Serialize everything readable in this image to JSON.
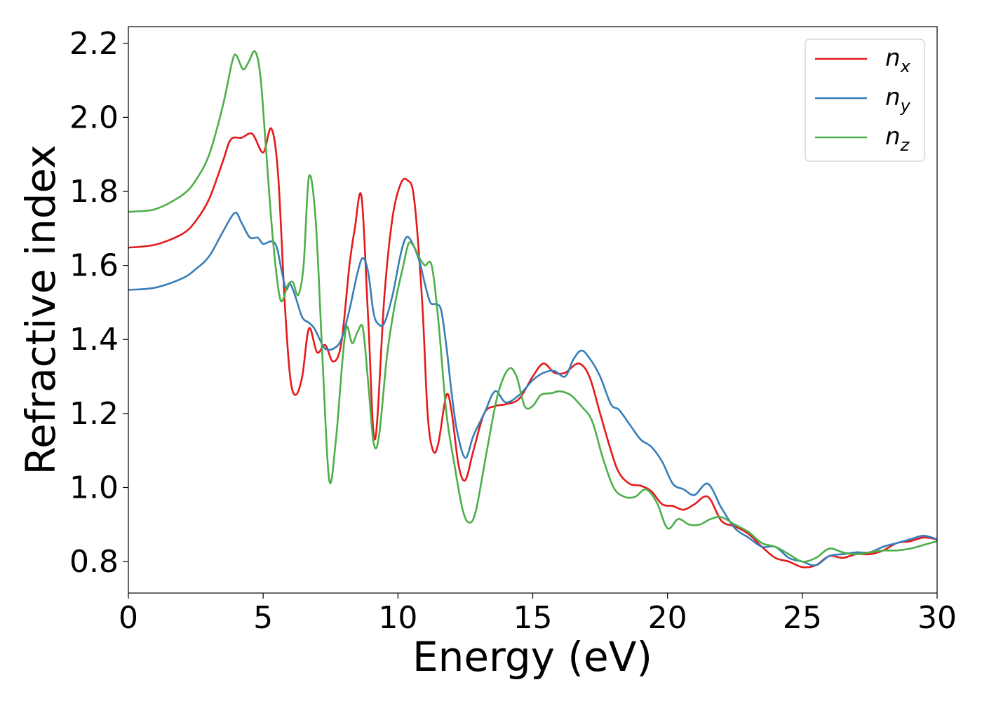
{
  "chart_data": {
    "type": "line",
    "xlabel": "Energy (eV)",
    "ylabel": "Refractive index",
    "xlim": [
      0,
      30
    ],
    "ylim": [
      0.715,
      2.245
    ],
    "xticks": [
      "0",
      "5",
      "10",
      "15",
      "20",
      "25",
      "30"
    ],
    "yticks": [
      "0.8",
      "1.0",
      "1.2",
      "1.4",
      "1.6",
      "1.8",
      "2.0",
      "2.2"
    ],
    "grid": false,
    "legend_position": "top-right",
    "series": [
      {
        "name": "n",
        "subscript": "x",
        "color": "#e41a1c",
        "x": [
          0,
          1,
          2,
          2.5,
          3,
          3.5,
          3.8,
          4.2,
          4.6,
          5.0,
          5.3,
          5.55,
          5.8,
          6.0,
          6.2,
          6.45,
          6.7,
          7.0,
          7.3,
          7.6,
          7.9,
          8.2,
          8.4,
          8.65,
          8.9,
          9.15,
          9.5,
          9.8,
          10.1,
          10.35,
          10.6,
          10.9,
          11.1,
          11.3,
          11.5,
          11.8,
          12.0,
          12.25,
          12.5,
          12.8,
          13.2,
          13.6,
          14.0,
          14.5,
          15.0,
          15.4,
          15.8,
          16.2,
          16.7,
          17.1,
          17.5,
          17.9,
          18.2,
          18.6,
          19.0,
          19.4,
          19.8,
          20.2,
          20.6,
          21.0,
          21.5,
          22.0,
          22.5,
          23.0,
          23.5,
          24.0,
          24.5,
          25.0,
          25.5,
          26.0,
          26.5,
          27.0,
          27.5,
          28.0,
          28.5,
          29.0,
          29.5,
          30.0
        ],
        "y": [
          1.648,
          1.656,
          1.685,
          1.72,
          1.78,
          1.88,
          1.94,
          1.945,
          1.955,
          1.905,
          1.97,
          1.85,
          1.5,
          1.3,
          1.25,
          1.3,
          1.43,
          1.365,
          1.385,
          1.34,
          1.39,
          1.6,
          1.7,
          1.785,
          1.45,
          1.13,
          1.52,
          1.73,
          1.82,
          1.83,
          1.78,
          1.5,
          1.2,
          1.1,
          1.12,
          1.25,
          1.2,
          1.06,
          1.02,
          1.1,
          1.2,
          1.22,
          1.225,
          1.24,
          1.3,
          1.335,
          1.31,
          1.31,
          1.335,
          1.3,
          1.2,
          1.1,
          1.04,
          1.01,
          1.005,
          0.99,
          0.955,
          0.95,
          0.94,
          0.955,
          0.975,
          0.91,
          0.895,
          0.875,
          0.84,
          0.81,
          0.8,
          0.785,
          0.79,
          0.815,
          0.81,
          0.82,
          0.82,
          0.83,
          0.85,
          0.855,
          0.865,
          0.86
        ]
      },
      {
        "name": "n",
        "subscript": "y",
        "color": "#377eb8",
        "x": [
          0,
          1,
          2,
          2.5,
          3,
          3.5,
          3.95,
          4.2,
          4.5,
          4.8,
          5.0,
          5.3,
          5.5,
          5.7,
          5.85,
          6.0,
          6.2,
          6.45,
          6.7,
          6.9,
          7.1,
          7.3,
          7.6,
          7.9,
          8.2,
          8.5,
          8.7,
          8.9,
          9.1,
          9.3,
          9.5,
          9.8,
          10.1,
          10.3,
          10.5,
          10.8,
          11.0,
          11.2,
          11.4,
          11.6,
          11.8,
          12.0,
          12.2,
          12.5,
          12.8,
          13.2,
          13.6,
          14.0,
          14.5,
          15.0,
          15.4,
          15.8,
          16.2,
          16.5,
          16.8,
          17.1,
          17.5,
          17.9,
          18.2,
          18.6,
          19.0,
          19.4,
          19.8,
          20.2,
          20.6,
          21.0,
          21.5,
          22.0,
          22.5,
          23.0,
          23.5,
          24.0,
          24.5,
          25.0,
          25.5,
          26.0,
          26.5,
          27.0,
          27.5,
          28.0,
          28.5,
          29.0,
          29.5,
          30.0
        ],
        "y": [
          1.534,
          1.54,
          1.565,
          1.59,
          1.625,
          1.69,
          1.742,
          1.715,
          1.676,
          1.675,
          1.658,
          1.665,
          1.65,
          1.58,
          1.535,
          1.55,
          1.515,
          1.46,
          1.445,
          1.43,
          1.4,
          1.375,
          1.375,
          1.4,
          1.48,
          1.58,
          1.62,
          1.58,
          1.47,
          1.44,
          1.445,
          1.52,
          1.63,
          1.675,
          1.665,
          1.61,
          1.55,
          1.5,
          1.495,
          1.48,
          1.38,
          1.25,
          1.15,
          1.08,
          1.14,
          1.2,
          1.26,
          1.23,
          1.25,
          1.29,
          1.31,
          1.315,
          1.3,
          1.345,
          1.37,
          1.35,
          1.3,
          1.225,
          1.21,
          1.17,
          1.13,
          1.11,
          1.07,
          1.01,
          0.995,
          0.98,
          1.01,
          0.945,
          0.89,
          0.865,
          0.84,
          0.84,
          0.81,
          0.8,
          0.79,
          0.815,
          0.82,
          0.825,
          0.825,
          0.84,
          0.85,
          0.86,
          0.87,
          0.86
        ]
      },
      {
        "name": "n",
        "subscript": "z",
        "color": "#4daf4a",
        "x": [
          0,
          1,
          2,
          2.5,
          3,
          3.5,
          3.85,
          4.0,
          4.25,
          4.45,
          4.7,
          4.9,
          5.1,
          5.35,
          5.6,
          5.75,
          5.9,
          6.1,
          6.3,
          6.5,
          6.7,
          6.95,
          7.2,
          7.45,
          7.7,
          7.95,
          8.1,
          8.3,
          8.5,
          8.7,
          8.9,
          9.1,
          9.3,
          9.6,
          9.9,
          10.2,
          10.4,
          10.6,
          10.8,
          11.0,
          11.25,
          11.5,
          11.8,
          12.1,
          12.4,
          12.65,
          12.9,
          13.3,
          13.7,
          14.1,
          14.4,
          14.7,
          15.0,
          15.3,
          15.7,
          16.0,
          16.4,
          16.8,
          17.2,
          17.6,
          18.0,
          18.4,
          18.8,
          19.2,
          19.6,
          20.0,
          20.4,
          20.8,
          21.2,
          21.6,
          22.0,
          22.5,
          23.0,
          23.5,
          24.0,
          24.5,
          25.0,
          25.5,
          26.0,
          26.5,
          27.0,
          27.5,
          28.0,
          28.5,
          29.0,
          29.5,
          30.0
        ],
        "y": [
          1.745,
          1.752,
          1.79,
          1.83,
          1.9,
          2.03,
          2.15,
          2.168,
          2.13,
          2.148,
          2.178,
          2.11,
          1.92,
          1.68,
          1.52,
          1.51,
          1.545,
          1.555,
          1.52,
          1.6,
          1.84,
          1.72,
          1.35,
          1.02,
          1.13,
          1.35,
          1.435,
          1.39,
          1.42,
          1.43,
          1.28,
          1.12,
          1.14,
          1.36,
          1.5,
          1.6,
          1.66,
          1.65,
          1.62,
          1.6,
          1.6,
          1.45,
          1.2,
          1.06,
          0.94,
          0.905,
          0.94,
          1.1,
          1.25,
          1.32,
          1.3,
          1.22,
          1.22,
          1.25,
          1.255,
          1.26,
          1.25,
          1.22,
          1.18,
          1.08,
          1.0,
          0.975,
          0.975,
          0.995,
          0.96,
          0.89,
          0.915,
          0.9,
          0.9,
          0.915,
          0.92,
          0.9,
          0.88,
          0.85,
          0.84,
          0.82,
          0.8,
          0.81,
          0.835,
          0.825,
          0.82,
          0.825,
          0.83,
          0.83,
          0.835,
          0.845,
          0.855
        ]
      }
    ]
  }
}
